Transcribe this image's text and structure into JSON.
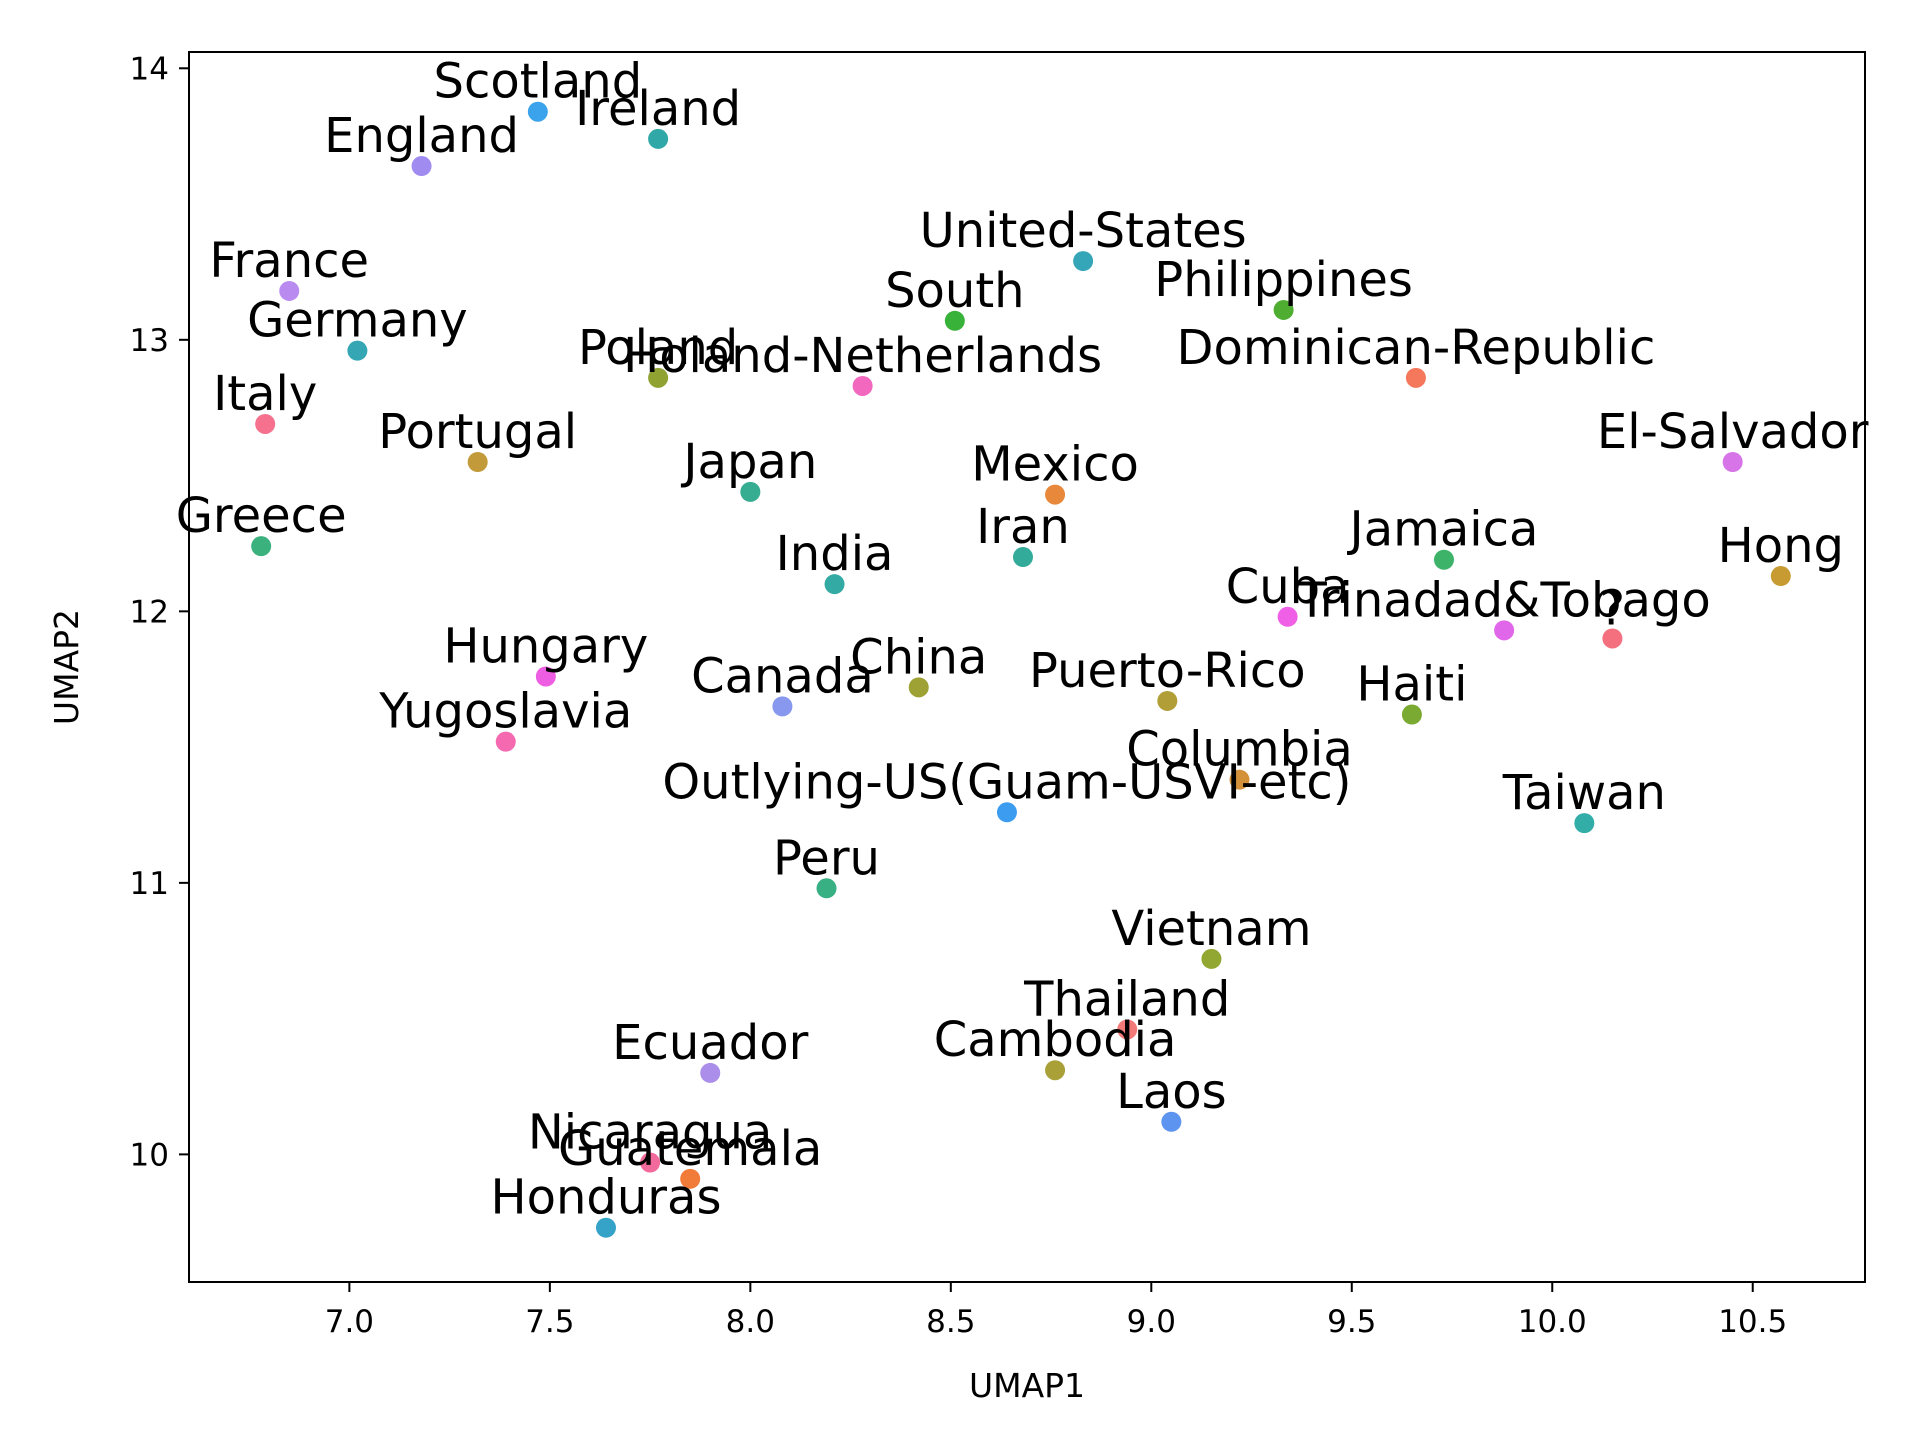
{
  "chart_data": {
    "type": "scatter",
    "title": "",
    "xlabel": "UMAP1",
    "ylabel": "UMAP2",
    "xlim": [
      6.6,
      10.78
    ],
    "ylim": [
      9.53,
      14.06
    ],
    "x_ticks": [
      7.0,
      7.5,
      8.0,
      8.5,
      9.0,
      9.5,
      10.0,
      10.5
    ],
    "x_tick_labels": [
      "7.0",
      "7.5",
      "8.0",
      "8.5",
      "9.0",
      "9.5",
      "10.0",
      "10.5"
    ],
    "y_ticks": [
      10,
      11,
      12,
      13,
      14
    ],
    "y_tick_labels": [
      "10",
      "11",
      "12",
      "13",
      "14"
    ],
    "grid": false,
    "legend": false,
    "points": [
      {
        "label": "Scotland",
        "x": 7.47,
        "y": 13.84,
        "color": "#3ba3ec"
      },
      {
        "label": "Ireland",
        "x": 7.77,
        "y": 13.74,
        "color": "#31a8a8"
      },
      {
        "label": "England",
        "x": 7.18,
        "y": 13.64,
        "color": "#a08cf0"
      },
      {
        "label": "United-States",
        "x": 8.83,
        "y": 13.29,
        "color": "#35a5b8"
      },
      {
        "label": "France",
        "x": 6.85,
        "y": 13.18,
        "color": "#b98af0"
      },
      {
        "label": "Philippines",
        "x": 9.33,
        "y": 13.11,
        "color": "#4fae32"
      },
      {
        "label": "South",
        "x": 8.51,
        "y": 13.07,
        "color": "#39b23a"
      },
      {
        "label": "Germany",
        "x": 7.02,
        "y": 12.96,
        "color": "#34a6b4"
      },
      {
        "label": "Poland",
        "x": 7.77,
        "y": 12.86,
        "color": "#8fa232"
      },
      {
        "label": "Dominican-Republic",
        "x": 9.66,
        "y": 12.86,
        "color": "#f5775c"
      },
      {
        "label": "Holand-Netherlands",
        "x": 8.28,
        "y": 12.83,
        "color": "#f268be"
      },
      {
        "label": "Italy",
        "x": 6.79,
        "y": 12.69,
        "color": "#f5718d"
      },
      {
        "label": "El-Salvador",
        "x": 10.45,
        "y": 12.55,
        "color": "#d674e8"
      },
      {
        "label": "Portugal",
        "x": 7.32,
        "y": 12.55,
        "color": "#c39a3a"
      },
      {
        "label": "Japan",
        "x": 8.0,
        "y": 12.44,
        "color": "#36ad90"
      },
      {
        "label": "Mexico",
        "x": 8.76,
        "y": 12.43,
        "color": "#e8883a"
      },
      {
        "label": "Greece",
        "x": 6.78,
        "y": 12.24,
        "color": "#3bb27e"
      },
      {
        "label": "Iran",
        "x": 8.68,
        "y": 12.2,
        "color": "#33ab9a"
      },
      {
        "label": "Jamaica",
        "x": 9.73,
        "y": 12.19,
        "color": "#3db36a"
      },
      {
        "label": "Hong",
        "x": 10.57,
        "y": 12.13,
        "color": "#c79a32"
      },
      {
        "label": "India",
        "x": 8.21,
        "y": 12.1,
        "color": "#34aaa4"
      },
      {
        "label": "Cuba",
        "x": 9.34,
        "y": 11.98,
        "color": "#f060e6"
      },
      {
        "label": "Trinadad&Tobago",
        "x": 9.88,
        "y": 11.93,
        "color": "#e066ea"
      },
      {
        "label": "?",
        "x": 10.15,
        "y": 11.9,
        "color": "#f4707e"
      },
      {
        "label": "Hungary",
        "x": 7.49,
        "y": 11.76,
        "color": "#ee5ee2"
      },
      {
        "label": "China",
        "x": 8.42,
        "y": 11.72,
        "color": "#9ea234"
      },
      {
        "label": "Puerto-Rico",
        "x": 9.04,
        "y": 11.67,
        "color": "#b19e36"
      },
      {
        "label": "Canada",
        "x": 8.08,
        "y": 11.65,
        "color": "#8898ee"
      },
      {
        "label": "Haiti",
        "x": 9.65,
        "y": 11.62,
        "color": "#7aaa32"
      },
      {
        "label": "Yugoslavia",
        "x": 7.39,
        "y": 11.52,
        "color": "#f469b0"
      },
      {
        "label": "Columbia",
        "x": 9.22,
        "y": 11.38,
        "color": "#d3923a"
      },
      {
        "label": "Outlying-US(Guam-USVI-etc)",
        "x": 8.64,
        "y": 11.26,
        "color": "#3c9cf0"
      },
      {
        "label": "Taiwan",
        "x": 10.08,
        "y": 11.22,
        "color": "#32ada8"
      },
      {
        "label": "Peru",
        "x": 8.19,
        "y": 10.98,
        "color": "#38b084"
      },
      {
        "label": "Vietnam",
        "x": 9.15,
        "y": 10.72,
        "color": "#92a632"
      },
      {
        "label": "Thailand",
        "x": 8.94,
        "y": 10.46,
        "color": "#f27a78"
      },
      {
        "label": "Cambodia",
        "x": 8.76,
        "y": 10.31,
        "color": "#aaa038"
      },
      {
        "label": "Ecuador",
        "x": 7.9,
        "y": 10.3,
        "color": "#ab8eea"
      },
      {
        "label": "Laos",
        "x": 9.05,
        "y": 10.12,
        "color": "#5c94f0"
      },
      {
        "label": "Nicaragua",
        "x": 7.75,
        "y": 9.97,
        "color": "#f26a9c"
      },
      {
        "label": "Guatemala",
        "x": 7.85,
        "y": 9.91,
        "color": "#f17c3a"
      },
      {
        "label": "Honduras",
        "x": 7.64,
        "y": 9.73,
        "color": "#35a2c8"
      }
    ]
  }
}
